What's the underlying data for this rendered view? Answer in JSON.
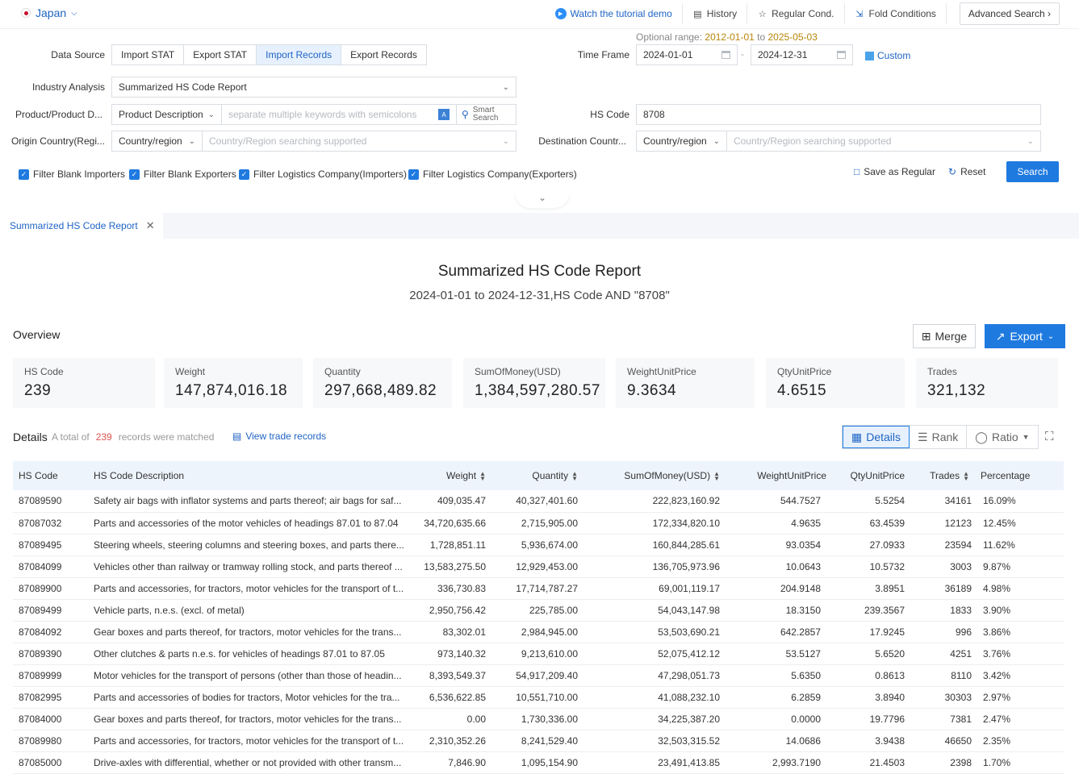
{
  "topbar": {
    "country": "Japan",
    "links": [
      {
        "label": "Watch the tutorial demo",
        "icon": "play-icon"
      },
      {
        "label": "History",
        "icon": "history-icon"
      },
      {
        "label": "Regular Cond.",
        "icon": "star-icon"
      },
      {
        "label": "Fold Conditions",
        "icon": "fold-icon"
      }
    ],
    "advanced": "Advanced Search"
  },
  "form": {
    "optional_range_label": "Optional range",
    "optional_range_from": "2012-01-01",
    "optional_range_to_word": "to",
    "optional_range_to": "2025-05-03",
    "data_source_label": "Data Source",
    "data_source_options": [
      "Import STAT",
      "Export STAT",
      "Import Records",
      "Export Records"
    ],
    "data_source_selected": "Import Records",
    "time_frame_label": "Time Frame",
    "time_from": "2024-01-01",
    "time_to": "2024-12-31",
    "custom": "Custom",
    "industry_label": "Industry Analysis",
    "industry_value": "Summarized HS Code Report",
    "product_label": "Product/Product D...",
    "product_type": "Product Description",
    "product_placeholder": "separate multiple keywords with semicolons",
    "smart_search_1": "Smart",
    "smart_search_2": "Search",
    "hs_label": "HS Code",
    "hs_value": "8708",
    "origin_label": "Origin Country(Regi...",
    "origin_type": "Country/region",
    "origin_placeholder": "Country/Region searching supported",
    "dest_label": "Destination Countr...",
    "dest_type": "Country/region",
    "dest_placeholder": "Country/Region searching supported",
    "filters": [
      "Filter Blank Importers",
      "Filter Blank Exporters",
      "Filter Logistics Company(Importers)",
      "Filter Logistics Company(Exporters)"
    ],
    "save_regular": "Save as Regular",
    "reset": "Reset",
    "search": "Search"
  },
  "tab": {
    "label": "Summarized HS Code Report"
  },
  "report": {
    "title": "Summarized HS Code Report",
    "subtitle": "2024-01-01 to 2024-12-31,HS Code AND \"8708\""
  },
  "overview": {
    "heading": "Overview",
    "merge": "Merge",
    "export": "Export",
    "cards": [
      {
        "key": "HS Code",
        "value": "239"
      },
      {
        "key": "Weight",
        "value": "147,874,016.18"
      },
      {
        "key": "Quantity",
        "value": "297,668,489.82"
      },
      {
        "key": "SumOfMoney(USD)",
        "value": "1,384,597,280.57"
      },
      {
        "key": "WeightUnitPrice",
        "value": "9.3634"
      },
      {
        "key": "QtyUnitPrice",
        "value": "4.6515"
      },
      {
        "key": "Trades",
        "value": "321,132"
      }
    ]
  },
  "details": {
    "heading": "Details",
    "total_prefix": "A total of",
    "total_count": "239",
    "total_suffix": "records were matched",
    "view_trade": "View trade records",
    "view_details": "Details",
    "view_rank": "Rank",
    "view_ratio": "Ratio",
    "columns": [
      "HS Code",
      "HS Code Description",
      "Weight",
      "Quantity",
      "SumOfMoney(USD)",
      "WeightUnitPrice",
      "QtyUnitPrice",
      "Trades",
      "Percentage"
    ],
    "rows": [
      [
        "87089590",
        "Safety air bags with inflator systems and parts thereof; air bags for saf...",
        "409,035.47",
        "40,327,401.60",
        "222,823,160.92",
        "544.7527",
        "5.5254",
        "34161",
        "16.09%"
      ],
      [
        "87087032",
        "Parts and accessories of the motor vehicles of headings 87.01 to 87.04",
        "34,720,635.66",
        "2,715,905.00",
        "172,334,820.10",
        "4.9635",
        "63.4539",
        "12123",
        "12.45%"
      ],
      [
        "87089495",
        "Steering wheels, steering columns and steering boxes, and parts there...",
        "1,728,851.11",
        "5,936,674.00",
        "160,844,285.61",
        "93.0354",
        "27.0933",
        "23594",
        "11.62%"
      ],
      [
        "87084099",
        "Vehicles other than railway or tramway rolling stock, and parts thereof ...",
        "13,583,275.50",
        "12,929,453.00",
        "136,705,973.96",
        "10.0643",
        "10.5732",
        "3003",
        "9.87%"
      ],
      [
        "87089900",
        "Parts and accessories, for tractors, motor vehicles for the transport of t...",
        "336,730.83",
        "17,714,787.27",
        "69,001,119.17",
        "204.9148",
        "3.8951",
        "36189",
        "4.98%"
      ],
      [
        "87089499",
        "Vehicle parts, n.e.s. (excl. of metal)",
        "2,950,756.42",
        "225,785.00",
        "54,043,147.98",
        "18.3150",
        "239.3567",
        "1833",
        "3.90%"
      ],
      [
        "87084092",
        "Gear boxes and parts thereof, for tractors, motor vehicles for the trans...",
        "83,302.01",
        "2,984,945.00",
        "53,503,690.21",
        "642.2857",
        "17.9245",
        "996",
        "3.86%"
      ],
      [
        "87089390",
        "Other clutches & parts n.e.s. for vehicles of headings 87.01 to 87.05",
        "973,140.32",
        "9,213,610.00",
        "52,075,412.12",
        "53.5127",
        "5.6520",
        "4251",
        "3.76%"
      ],
      [
        "87089999",
        "Motor vehicles for the transport of persons (other than those of headin...",
        "8,393,549.37",
        "54,917,209.40",
        "47,298,051.73",
        "5.6350",
        "0.8613",
        "8110",
        "3.42%"
      ],
      [
        "87082995",
        "Parts and accessories of bodies for tractors, Motor vehicles for the tra...",
        "6,536,622.85",
        "10,551,710.00",
        "41,088,232.10",
        "6.2859",
        "3.8940",
        "30303",
        "2.97%"
      ],
      [
        "87084000",
        "Gear boxes and parts thereof, for tractors, motor vehicles for the trans...",
        "0.00",
        "1,730,336.00",
        "34,225,387.20",
        "0.0000",
        "19.7796",
        "7381",
        "2.47%"
      ],
      [
        "87089980",
        "Parts and accessories, for tractors, motor vehicles for the transport of t...",
        "2,310,352.26",
        "8,241,529.40",
        "32,503,315.52",
        "14.0686",
        "3.9438",
        "46650",
        "2.35%"
      ],
      [
        "87085000",
        "Drive-axles with differential, whether or not provided with other transm...",
        "7,846.90",
        "1,095,154.90",
        "23,491,413.85",
        "2,993.7190",
        "21.4503",
        "2398",
        "1.70%"
      ]
    ]
  }
}
